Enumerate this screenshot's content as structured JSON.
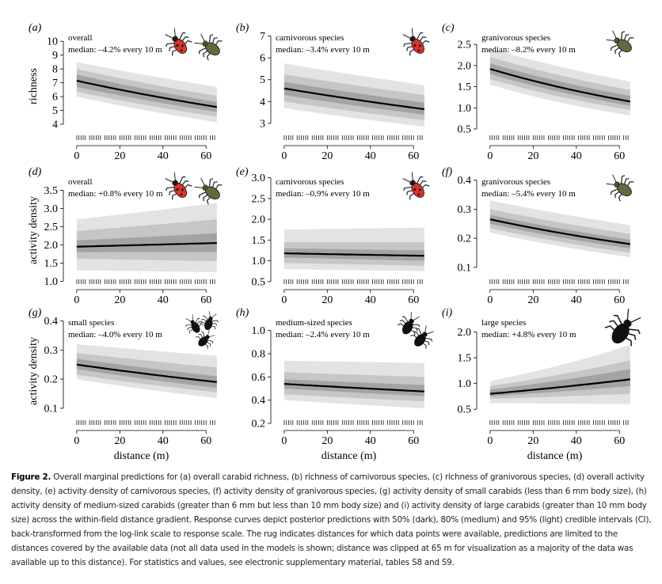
{
  "figure": {
    "caption_label": "Figure 2.",
    "caption_text": "Overall marginal predictions for (a) overall carabid richness, (b) richness of carnivorous species, (c) richness of granivorous species, (d) overall activity density, (e) activity density of carnivorous species, (f) activity density of granivorous species, (g) activity density of small carabids (less than 6 mm body size), (h) activity density of medium-sized carabids (greater than 6 mm but less than 10 mm body size) and (i) activity density of large carabids (greater than 10 mm body size) across the within-field distance gradient. Response curves depict posterior predictions with 50% (dark), 80% (medium) and 95% (light) credible intervals (CI), back-transformed from the log-link scale to response scale. The rug indicates distances for which data points were available, predictions are limited to the distances covered by the available data (not all data used in the models is shown; distance was clipped at 65 m for visualization as a majority of the data was available up to this distance). For statistics and values, see electronic supplementary material, tables S8 and S9.",
    "colors": {
      "ci95": "#e3e3e3",
      "ci80": "#c6c6c6",
      "ci50": "#a3a3a3",
      "line": "#000000",
      "beetle_red": "#d9342b",
      "beetle_green": "#5e6b3a"
    }
  },
  "chart_data": [
    {
      "panel": "(a)",
      "type": "line",
      "title": "overall",
      "annotation": "median: –4.2% every 10 m",
      "ylabel": "richness",
      "xlabel": "",
      "xlim": [
        -4,
        68
      ],
      "ylim": [
        2.8,
        10.7
      ],
      "yticks": [
        4,
        5,
        6,
        7,
        8,
        9,
        10
      ],
      "ytick_labels": [
        "4",
        "5",
        "6",
        "7",
        "8",
        "9",
        "10"
      ],
      "xticks": [
        0,
        20,
        40,
        60
      ],
      "xtick_labels": [
        "0",
        "20",
        "40",
        "60"
      ],
      "x": [
        0,
        65
      ],
      "median": [
        7.15,
        5.25
      ],
      "ci50": [
        [
          6.7,
          7.6
        ],
        [
          4.9,
          5.6
        ]
      ],
      "ci80": [
        [
          6.35,
          8.0
        ],
        [
          4.55,
          6.05
        ]
      ],
      "ci95": [
        [
          6.0,
          8.5
        ],
        [
          4.15,
          6.7
        ]
      ],
      "icons": [
        "red-beetle-icon",
        "green-beetle-icon"
      ]
    },
    {
      "panel": "(b)",
      "type": "line",
      "title": "carnivorous species",
      "annotation": "median: –3.4% every 10 m",
      "ylabel": "",
      "xlabel": "",
      "xlim": [
        -4,
        68
      ],
      "ylim": [
        2.2,
        7.2
      ],
      "yticks": [
        3,
        4,
        5,
        6,
        7
      ],
      "ytick_labels": [
        "3",
        "4",
        "5",
        "6",
        "7"
      ],
      "xticks": [
        0,
        20,
        40,
        60
      ],
      "xtick_labels": [
        "0",
        "20",
        "40",
        "60"
      ],
      "x": [
        0,
        65
      ],
      "median": [
        4.6,
        3.65
      ],
      "ci50": [
        [
          4.3,
          4.9
        ],
        [
          3.4,
          3.95
        ]
      ],
      "ci80": [
        [
          4.0,
          5.25
        ],
        [
          3.15,
          4.3
        ]
      ],
      "ci95": [
        [
          3.7,
          5.75
        ],
        [
          2.85,
          4.75
        ]
      ],
      "icons": [
        "red-beetle-icon"
      ]
    },
    {
      "panel": "(c)",
      "type": "line",
      "title": "granivorous species",
      "annotation": "median: –8.2% every 10 m",
      "ylabel": "",
      "xlabel": "",
      "xlim": [
        -4,
        68
      ],
      "ylim": [
        0.22,
        2.8
      ],
      "yticks": [
        0.5,
        1.0,
        1.5,
        2.0,
        2.5
      ],
      "ytick_labels": [
        "0.5",
        "1.0",
        "1.5",
        "2.0",
        "2.5"
      ],
      "xticks": [
        0,
        20,
        40,
        60
      ],
      "xtick_labels": [
        "0",
        "20",
        "40",
        "60"
      ],
      "x": [
        0,
        65
      ],
      "median": [
        1.92,
        1.15
      ],
      "ci50": [
        [
          1.8,
          2.05
        ],
        [
          1.05,
          1.28
        ]
      ],
      "ci80": [
        [
          1.68,
          2.2
        ],
        [
          0.95,
          1.42
        ]
      ],
      "ci95": [
        [
          1.55,
          2.4
        ],
        [
          0.82,
          1.62
        ]
      ],
      "icons": [
        "green-beetle-icon"
      ]
    },
    {
      "panel": "(d)",
      "type": "line",
      "title": "overall",
      "annotation": "median: +0.8% every 10 m",
      "ylabel": "activity density",
      "xlabel": "",
      "xlim": [
        -4,
        68
      ],
      "ylim": [
        0.9,
        3.9
      ],
      "yticks": [
        1.0,
        1.5,
        2.0,
        2.5,
        3.0,
        3.5
      ],
      "ytick_labels": [
        "1.0",
        "1.5",
        "2.0",
        "2.5",
        "3.0",
        "3.5"
      ],
      "xticks": [
        0,
        20,
        40,
        60
      ],
      "xtick_labels": [
        "0",
        "20",
        "40",
        "60"
      ],
      "x": [
        0,
        65
      ],
      "median": [
        1.95,
        2.05
      ],
      "ci50": [
        [
          1.8,
          2.12
        ],
        [
          1.8,
          2.32
        ]
      ],
      "ci80": [
        [
          1.62,
          2.38
        ],
        [
          1.55,
          2.7
        ]
      ],
      "ci95": [
        [
          1.3,
          2.7
        ],
        [
          1.25,
          3.15
        ]
      ],
      "icons": [
        "red-beetle-icon",
        "green-beetle-icon"
      ]
    },
    {
      "panel": "(e)",
      "type": "line",
      "title": "carnivorous species",
      "annotation": "median: –0.9% every 10 m",
      "ylabel": "",
      "xlabel": "",
      "xlim": [
        -4,
        68
      ],
      "ylim": [
        0.42,
        3.05
      ],
      "yticks": [
        0.5,
        1.0,
        1.5,
        2.0,
        2.5,
        3.0
      ],
      "ytick_labels": [
        "0.5",
        "1.0",
        "1.5",
        "2.0",
        "2.5",
        "3.0"
      ],
      "xticks": [
        0,
        20,
        40,
        60
      ],
      "xtick_labels": [
        "0",
        "20",
        "40",
        "60"
      ],
      "x": [
        0,
        65
      ],
      "median": [
        1.18,
        1.12
      ],
      "ci50": [
        [
          1.08,
          1.3
        ],
        [
          1.0,
          1.25
        ]
      ],
      "ci80": [
        [
          0.95,
          1.45
        ],
        [
          0.88,
          1.45
        ]
      ],
      "ci95": [
        [
          0.8,
          1.75
        ],
        [
          0.75,
          1.8
        ]
      ],
      "icons": [
        "red-beetle-icon"
      ]
    },
    {
      "panel": "(f)",
      "type": "line",
      "title": "granivorous species",
      "annotation": "median: –5.4% every 10 m",
      "ylabel": "",
      "xlabel": "",
      "xlim": [
        -4,
        68
      ],
      "ylim": [
        0.04,
        0.415
      ],
      "yticks": [
        0.1,
        0.2,
        0.3,
        0.4
      ],
      "ytick_labels": [
        "0.1",
        "0.2",
        "0.3",
        "0.4"
      ],
      "xticks": [
        0,
        20,
        40,
        60
      ],
      "xtick_labels": [
        "0",
        "20",
        "40",
        "60"
      ],
      "x": [
        0,
        65
      ],
      "median": [
        0.265,
        0.18
      ],
      "ci50": [
        [
          0.25,
          0.28
        ],
        [
          0.165,
          0.195
        ]
      ],
      "ci80": [
        [
          0.235,
          0.3
        ],
        [
          0.15,
          0.215
        ]
      ],
      "ci95": [
        [
          0.22,
          0.33
        ],
        [
          0.135,
          0.245
        ]
      ],
      "icons": [
        "green-beetle-icon"
      ]
    },
    {
      "panel": "(g)",
      "type": "line",
      "title": "small species",
      "annotation": "median: –4.0% every 10 m",
      "ylabel": "activity density",
      "xlabel": "distance (m)",
      "xlim": [
        -4,
        68
      ],
      "ylim": [
        0.04,
        0.415
      ],
      "yticks": [
        0.1,
        0.2,
        0.3,
        0.4
      ],
      "ytick_labels": [
        "0.1",
        "0.2",
        "0.3",
        "0.4"
      ],
      "xticks": [
        0,
        20,
        40,
        60
      ],
      "xtick_labels": [
        "0",
        "20",
        "40",
        "60"
      ],
      "x": [
        0,
        65
      ],
      "median": [
        0.25,
        0.19
      ],
      "ci50": [
        [
          0.235,
          0.27
        ],
        [
          0.17,
          0.21
        ]
      ],
      "ci80": [
        [
          0.215,
          0.29
        ],
        [
          0.155,
          0.24
        ]
      ],
      "ci95": [
        [
          0.2,
          0.32
        ],
        [
          0.135,
          0.28
        ]
      ],
      "icons": [
        "small-beetles-icon"
      ]
    },
    {
      "panel": "(h)",
      "type": "line",
      "title": "medium-sized species",
      "annotation": "median: –2.4% every 10 m",
      "ylabel": "",
      "xlabel": "distance (m)",
      "xlim": [
        -4,
        68
      ],
      "ylim": [
        0.18,
        1.12
      ],
      "yticks": [
        0.2,
        0.4,
        0.6,
        0.8,
        1.0
      ],
      "ytick_labels": [
        "0.2",
        "0.4",
        "0.6",
        "0.8",
        "1.0"
      ],
      "xticks": [
        0,
        20,
        40,
        60
      ],
      "xtick_labels": [
        "0",
        "20",
        "40",
        "60"
      ],
      "x": [
        0,
        65
      ],
      "median": [
        0.54,
        0.475
      ],
      "ci50": [
        [
          0.5,
          0.58
        ],
        [
          0.435,
          0.53
        ]
      ],
      "ci80": [
        [
          0.45,
          0.64
        ],
        [
          0.39,
          0.6
        ]
      ],
      "ci95": [
        [
          0.4,
          0.74
        ],
        [
          0.33,
          0.72
        ]
      ],
      "icons": [
        "medium-beetles-icon"
      ]
    },
    {
      "panel": "(i)",
      "type": "line",
      "title": "large species",
      "annotation": "median: +4.8% every 10 m",
      "ylabel": "",
      "xlabel": "distance (m)",
      "xlim": [
        -4,
        68
      ],
      "ylim": [
        0.18,
        2.3
      ],
      "yticks": [
        0.5,
        1.0,
        1.5,
        2.0
      ],
      "ytick_labels": [
        "0.5",
        "1.0",
        "1.5",
        "2.0"
      ],
      "xticks": [
        0,
        20,
        40,
        60
      ],
      "xtick_labels": [
        "0",
        "20",
        "40",
        "60"
      ],
      "x": [
        0,
        65
      ],
      "median": [
        0.8,
        1.08
      ],
      "ci50": [
        [
          0.75,
          0.88
        ],
        [
          0.95,
          1.28
        ]
      ],
      "ci80": [
        [
          0.7,
          0.95
        ],
        [
          0.8,
          1.45
        ]
      ],
      "ci95": [
        [
          0.62,
          1.05
        ],
        [
          0.6,
          1.75
        ]
      ],
      "icons": [
        "large-beetle-icon"
      ]
    }
  ]
}
